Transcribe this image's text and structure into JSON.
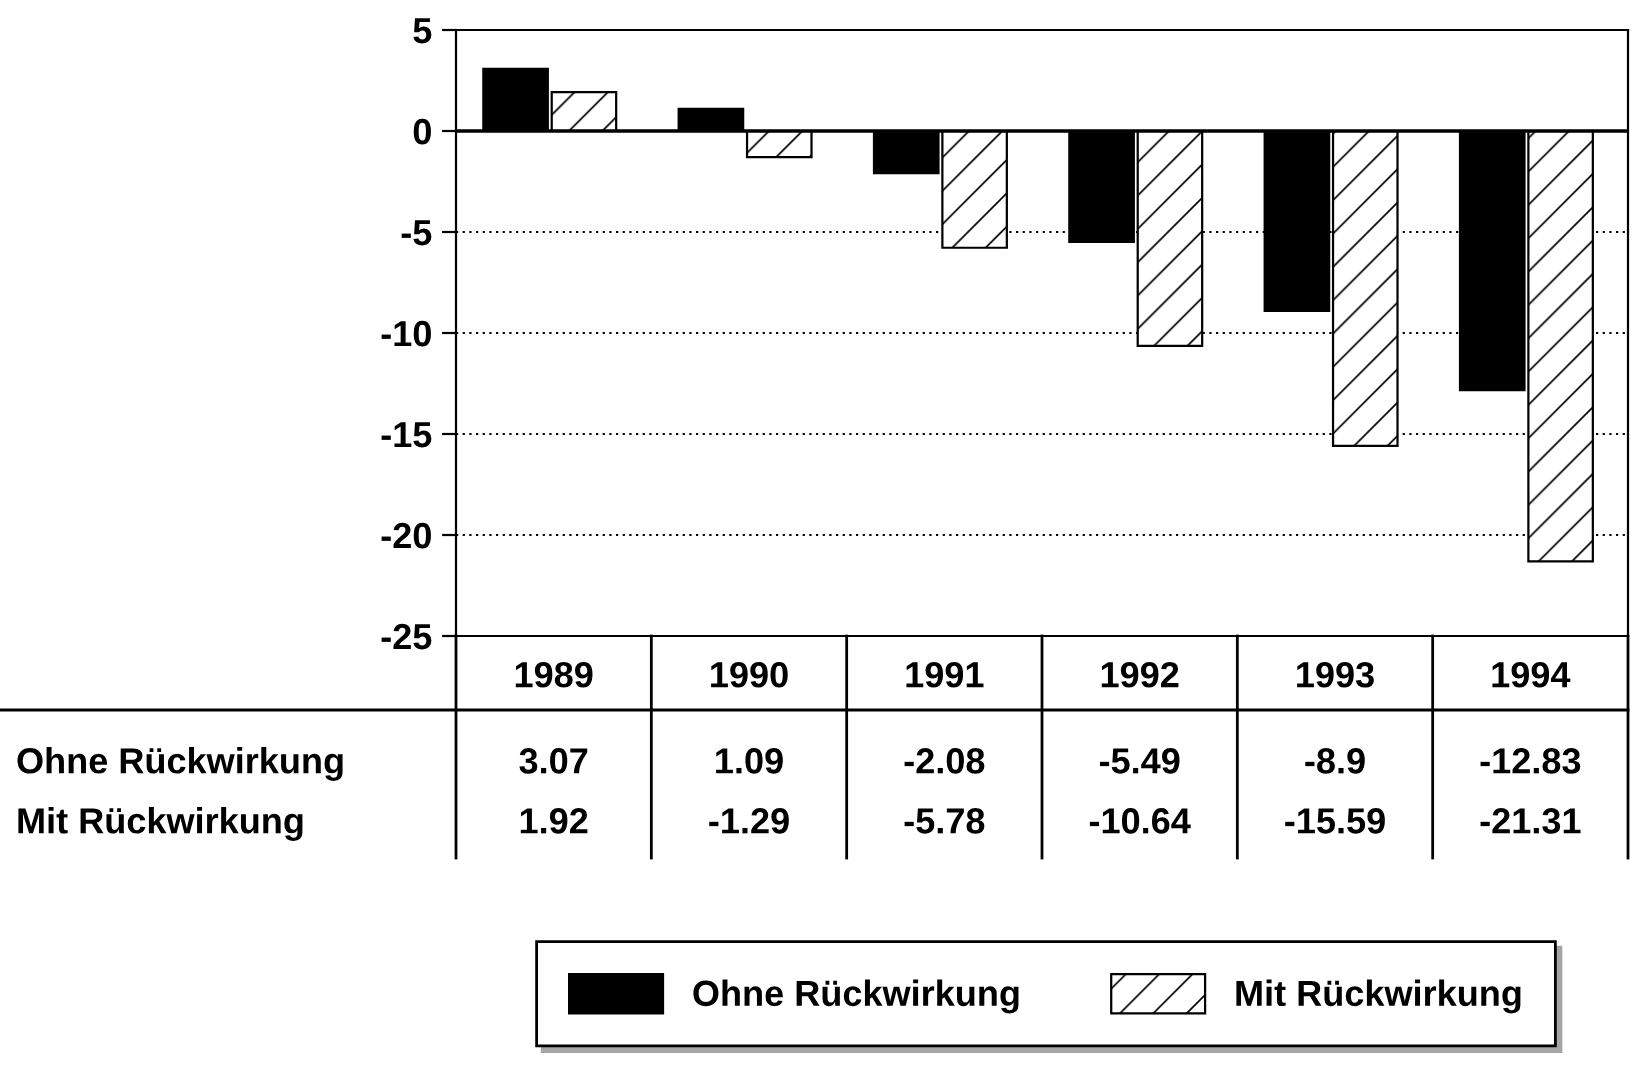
{
  "chart_data": {
    "type": "bar",
    "categories": [
      "1989",
      "1990",
      "1991",
      "1992",
      "1993",
      "1994"
    ],
    "series": [
      {
        "name": "Ohne Rückwirkung",
        "color": "#000000",
        "values": [
          3.07,
          1.09,
          -2.08,
          -5.49,
          -8.9,
          -12.83
        ]
      },
      {
        "name": "Mit Rückwirkung",
        "color": "#ffffff",
        "values": [
          1.92,
          -1.29,
          -5.78,
          -10.64,
          -15.59,
          -21.31
        ]
      }
    ],
    "ylim": [
      -25,
      5
    ],
    "yticks": [
      -25,
      -20,
      -15,
      -10,
      -5,
      0,
      5
    ],
    "grid": "y",
    "legend": "bottom",
    "data_labels": true
  }
}
